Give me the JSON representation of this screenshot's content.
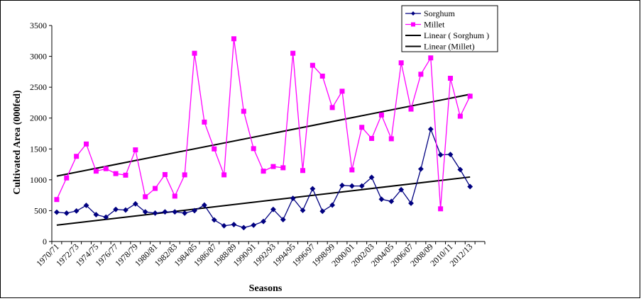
{
  "chart_data": {
    "type": "line",
    "title": "",
    "xlabel": "Seasons",
    "ylabel": "Cultivated Area (000fed)",
    "ylim": [
      0,
      3500
    ],
    "yticks": [
      0,
      500,
      1000,
      1500,
      2000,
      2500,
      3000,
      3500
    ],
    "categories": [
      "1970/71",
      "1971/72",
      "1972/73",
      "1973/74",
      "1974/75",
      "1975/76",
      "1976/77",
      "1977/78",
      "1978/79",
      "1979/80",
      "1980/81",
      "1981/82",
      "1982/83",
      "1983/84",
      "1984/85",
      "1985/86",
      "1986/87",
      "1987/88",
      "1988/89",
      "1989/90",
      "1990/91",
      "1991/92",
      "1992/93",
      "1993/94",
      "1994/95",
      "1995/96",
      "1996/97",
      "1997/98",
      "1998/99",
      "1999/00",
      "2000/01",
      "2001/02",
      "2002/03",
      "2003/04",
      "2004/05",
      "2005/06",
      "2006/07",
      "2007/08",
      "2008/09",
      "2009/10",
      "2010/11",
      "2011/12",
      "2012/13",
      "2013/14"
    ],
    "xtick_labels": [
      "1970/71",
      "1972/73",
      "1974/75",
      "1976/77",
      "1978/79",
      "1980/81",
      "1982/83",
      "1984/85",
      "1986/87",
      "1988/89",
      "1990/91",
      "1992/93",
      "1994/95",
      "1996/97",
      "1998/99",
      "2000/01",
      "2002/03",
      "2004/05",
      "2006/07",
      "2008/09",
      "2010/11",
      "2012/13"
    ],
    "grid": false,
    "legend_position": "top-right",
    "series": [
      {
        "name": "Sorghum",
        "color": "#000080",
        "marker": "diamond",
        "values": [
          475,
          460,
          495,
          585,
          435,
          395,
          520,
          510,
          610,
          480,
          460,
          480,
          480,
          460,
          500,
          590,
          350,
          255,
          275,
          225,
          265,
          325,
          520,
          355,
          700,
          505,
          855,
          490,
          590,
          910,
          900,
          900,
          1040,
          685,
          650,
          840,
          620,
          1175,
          1820,
          1405,
          1410,
          1165,
          890,
          null
        ]
      },
      {
        "name": "Millet",
        "color": "#ff00ff",
        "marker": "square",
        "values": [
          680,
          1030,
          1380,
          1580,
          1140,
          1180,
          1100,
          1075,
          1485,
          725,
          860,
          1085,
          735,
          1080,
          3050,
          1935,
          1500,
          1080,
          3285,
          2110,
          1505,
          1140,
          1215,
          1195,
          3050,
          1150,
          2855,
          2680,
          2170,
          2435,
          1160,
          1850,
          1670,
          2050,
          1665,
          2895,
          2145,
          2710,
          2975,
          530,
          2645,
          2030,
          2355,
          null
        ]
      }
    ],
    "trendlines": [
      {
        "name": "Linear ( Sorghum )",
        "color": "#000000",
        "start": [
          0,
          265
        ],
        "end": [
          42,
          1045
        ]
      },
      {
        "name": "Linear (Millet)",
        "color": "#000000",
        "start": [
          0,
          1060
        ],
        "end": [
          42,
          2385
        ]
      }
    ]
  }
}
